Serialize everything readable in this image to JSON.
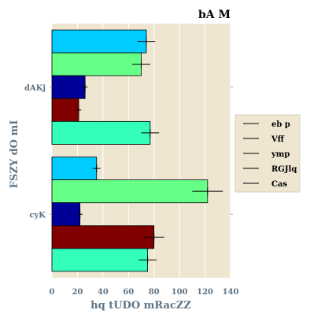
{
  "chart_data": {
    "type": "bar",
    "orientation": "horizontal",
    "title": "bA M",
    "xlabel": "hq tUDO mRacZZ",
    "ylabel": "FSZY dO mI",
    "xlim": [
      0,
      140
    ],
    "xticks": [
      0,
      20,
      40,
      60,
      80,
      100,
      120,
      140
    ],
    "categories": [
      "cyK",
      "dAKj"
    ],
    "grid": true,
    "legend_position": "center-right",
    "background": "#efe6d2",
    "series": [
      {
        "name": "eb p",
        "color": "#00ccff",
        "values": [
          35,
          74
        ],
        "errors": [
          3,
          7
        ]
      },
      {
        "name": "Vff",
        "color": "#66ff88",
        "values": [
          122,
          70
        ],
        "errors": [
          12,
          7
        ]
      },
      {
        "name": "ymp",
        "color": "#000099",
        "values": [
          22,
          26
        ],
        "errors": [
          2,
          2
        ]
      },
      {
        "name": "RGJlq",
        "color": "#800000",
        "values": [
          80,
          21
        ],
        "errors": [
          8,
          2
        ]
      },
      {
        "name": "Cas",
        "color": "#33ffbb",
        "values": [
          75,
          77
        ],
        "errors": [
          7,
          7
        ]
      }
    ]
  }
}
